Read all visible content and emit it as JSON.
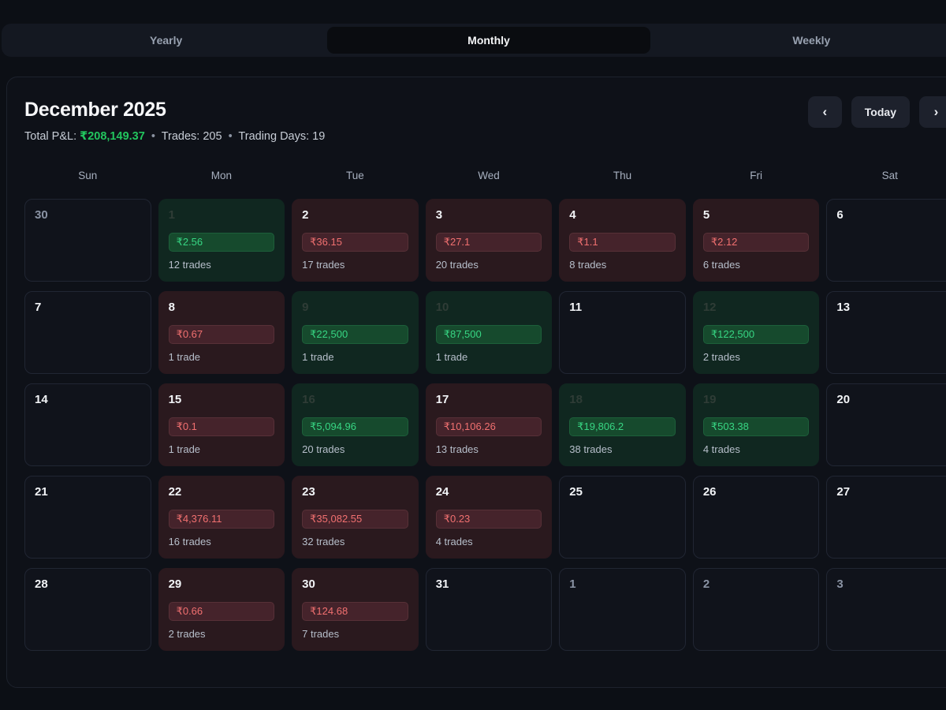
{
  "tabs": {
    "items": [
      {
        "label": "Yearly",
        "active": false
      },
      {
        "label": "Monthly",
        "active": true
      },
      {
        "label": "Weekly",
        "active": false
      }
    ]
  },
  "header": {
    "title": "December 2025",
    "summary": {
      "pnl_label": "Total P&L:",
      "pnl_value": "₹208,149.37",
      "separator": "•",
      "trades_text": "Trades: 205",
      "trading_days_text": "Trading Days: 19"
    },
    "nav": {
      "prev_label": "‹",
      "today_label": "Today",
      "next_label": "›"
    }
  },
  "calendar": {
    "weekdays": [
      "Sun",
      "Mon",
      "Tue",
      "Wed",
      "Thu",
      "Fri",
      "Sat"
    ],
    "days": [
      {
        "day": "30",
        "type": "outside"
      },
      {
        "day": "1",
        "type": "profit",
        "pnl": "₹2.56",
        "trades": "12 trades"
      },
      {
        "day": "2",
        "type": "loss",
        "pnl": "₹36.15",
        "trades": "17 trades"
      },
      {
        "day": "3",
        "type": "loss",
        "pnl": "₹27.1",
        "trades": "20 trades"
      },
      {
        "day": "4",
        "type": "loss",
        "pnl": "₹1.1",
        "trades": "8 trades"
      },
      {
        "day": "5",
        "type": "loss",
        "pnl": "₹2.12",
        "trades": "6 trades"
      },
      {
        "day": "6",
        "type": "empty"
      },
      {
        "day": "7",
        "type": "empty"
      },
      {
        "day": "8",
        "type": "loss",
        "pnl": "₹0.67",
        "trades": "1 trade"
      },
      {
        "day": "9",
        "type": "profit",
        "pnl": "₹22,500",
        "trades": "1 trade"
      },
      {
        "day": "10",
        "type": "profit",
        "pnl": "₹87,500",
        "trades": "1 trade"
      },
      {
        "day": "11",
        "type": "empty"
      },
      {
        "day": "12",
        "type": "profit",
        "pnl": "₹122,500",
        "trades": "2 trades"
      },
      {
        "day": "13",
        "type": "empty"
      },
      {
        "day": "14",
        "type": "empty"
      },
      {
        "day": "15",
        "type": "loss",
        "pnl": "₹0.1",
        "trades": "1 trade"
      },
      {
        "day": "16",
        "type": "profit",
        "pnl": "₹5,094.96",
        "trades": "20 trades"
      },
      {
        "day": "17",
        "type": "loss",
        "pnl": "₹10,106.26",
        "trades": "13 trades"
      },
      {
        "day": "18",
        "type": "profit",
        "pnl": "₹19,806.2",
        "trades": "38 trades"
      },
      {
        "day": "19",
        "type": "profit",
        "pnl": "₹503.38",
        "trades": "4 trades"
      },
      {
        "day": "20",
        "type": "empty"
      },
      {
        "day": "21",
        "type": "empty"
      },
      {
        "day": "22",
        "type": "loss",
        "pnl": "₹4,376.11",
        "trades": "16 trades"
      },
      {
        "day": "23",
        "type": "loss",
        "pnl": "₹35,082.55",
        "trades": "32 trades"
      },
      {
        "day": "24",
        "type": "loss",
        "pnl": "₹0.23",
        "trades": "4 trades"
      },
      {
        "day": "25",
        "type": "empty"
      },
      {
        "day": "26",
        "type": "empty"
      },
      {
        "day": "27",
        "type": "empty"
      },
      {
        "day": "28",
        "type": "empty"
      },
      {
        "day": "29",
        "type": "loss",
        "pnl": "₹0.66",
        "trades": "2 trades"
      },
      {
        "day": "30",
        "type": "loss",
        "pnl": "₹124.68",
        "trades": "7 trades"
      },
      {
        "day": "31",
        "type": "empty"
      },
      {
        "day": "1",
        "type": "outside"
      },
      {
        "day": "2",
        "type": "outside"
      },
      {
        "day": "3",
        "type": "outside"
      }
    ]
  },
  "colors": {
    "profit_green": "#22c55e",
    "profit_badge_text": "#37d683",
    "loss_red": "#f17070",
    "page_background": "#0c0f15"
  }
}
